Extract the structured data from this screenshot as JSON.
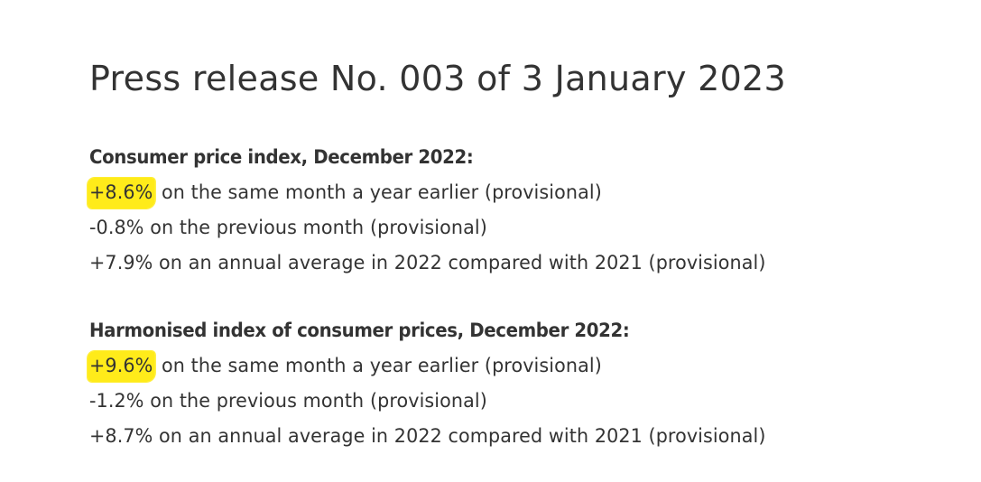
{
  "title": "Press release No. 003 of 3 January 2023",
  "highlight_color": "#ffeb1a",
  "sections": [
    {
      "heading": "Consumer price index, December 2022:",
      "lines": [
        {
          "value": "+8.6%",
          "text": " on the same month a year earlier (provisional)",
          "highlighted": true
        },
        {
          "value": "-0.8%",
          "text": " on the previous month (provisional)",
          "highlighted": false
        },
        {
          "value": "+7.9%",
          "text": " on an annual average in 2022 compared with 2021 (provisional)",
          "highlighted": false
        }
      ]
    },
    {
      "heading": "Harmonised index of consumer prices, December 2022:",
      "lines": [
        {
          "value": "+9.6%",
          "text": " on the same month a year earlier (provisional)",
          "highlighted": true
        },
        {
          "value": "-1.2%",
          "text": " on the previous month (provisional)",
          "highlighted": false
        },
        {
          "value": "+8.7%",
          "text": " on an annual average in 2022 compared with 2021 (provisional)",
          "highlighted": false
        }
      ]
    }
  ]
}
